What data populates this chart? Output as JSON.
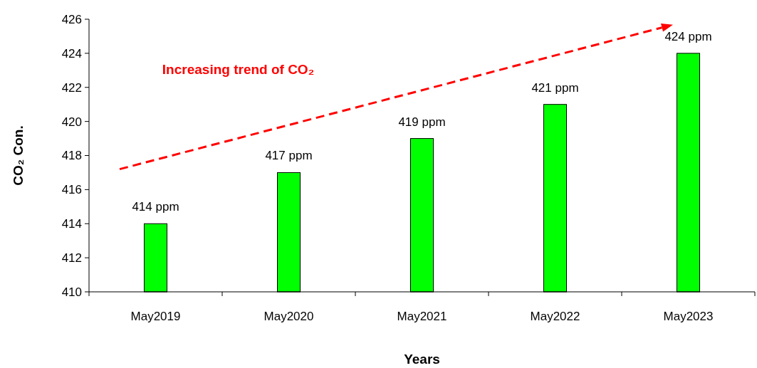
{
  "chart_data": {
    "type": "bar",
    "xlabel": "Years",
    "ylabel": "CO₂ Con.",
    "annotations": [
      "Increasing trend of CO₂"
    ],
    "categories": [
      "May2019",
      "May2020",
      "May2021",
      "May2022",
      "May2023"
    ],
    "values": [
      414,
      417,
      419,
      421,
      424
    ],
    "value_labels": [
      "414 ppm",
      "417 ppm",
      "419 ppm",
      "421 ppm",
      "424 ppm"
    ],
    "color": "#00ff00",
    "ylim": [
      410,
      426
    ],
    "yticks": [
      410,
      412,
      414,
      416,
      418,
      420,
      422,
      424,
      426
    ],
    "grid": false
  }
}
